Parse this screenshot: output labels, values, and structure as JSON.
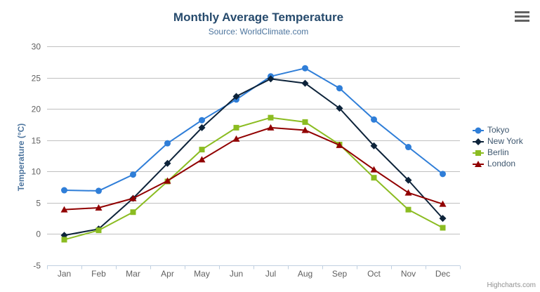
{
  "credits_label": "Highcharts.com",
  "colors": {
    "background": "#ffffff",
    "title": "#274b6d",
    "subtitle": "#4d759e",
    "axis_title": "#4d759e",
    "axis_labels": "#606060",
    "gridline": "#c0c0c0",
    "axis_line": "#c0d0e0",
    "legend_text": "#3e576f",
    "credits": "#909090",
    "burger_icon": "#616161"
  },
  "chart_data": {
    "type": "line",
    "title": "Monthly Average Temperature",
    "subtitle": "Source: WorldClimate.com",
    "categories": [
      "Jan",
      "Feb",
      "Mar",
      "Apr",
      "May",
      "Jun",
      "Jul",
      "Aug",
      "Sep",
      "Oct",
      "Nov",
      "Dec"
    ],
    "xlabel": "",
    "ylabel": "Temperature (°C)",
    "ylim": [
      -5,
      30
    ],
    "yticks": [
      -5,
      0,
      5,
      10,
      15,
      20,
      25,
      30
    ],
    "grid": true,
    "legend_position": "right",
    "series": [
      {
        "name": "Tokyo",
        "color": "#2f7ed8",
        "marker": "circle",
        "values": [
          7.0,
          6.9,
          9.5,
          14.5,
          18.2,
          21.5,
          25.2,
          26.5,
          23.3,
          18.3,
          13.9,
          9.6
        ]
      },
      {
        "name": "New York",
        "color": "#0d233a",
        "marker": "diamond",
        "values": [
          -0.2,
          0.8,
          5.7,
          11.3,
          17.0,
          22.0,
          24.8,
          24.1,
          20.1,
          14.1,
          8.6,
          2.5
        ]
      },
      {
        "name": "Berlin",
        "color": "#8bbc21",
        "marker": "square",
        "values": [
          -0.9,
          0.6,
          3.5,
          8.4,
          13.5,
          17.0,
          18.6,
          17.9,
          14.3,
          9.0,
          3.9,
          1.0
        ]
      },
      {
        "name": "London",
        "color": "#910000",
        "marker": "triangle",
        "values": [
          3.9,
          4.2,
          5.7,
          8.5,
          11.9,
          15.2,
          17.0,
          16.6,
          14.2,
          10.3,
          6.6,
          4.8
        ]
      }
    ]
  }
}
